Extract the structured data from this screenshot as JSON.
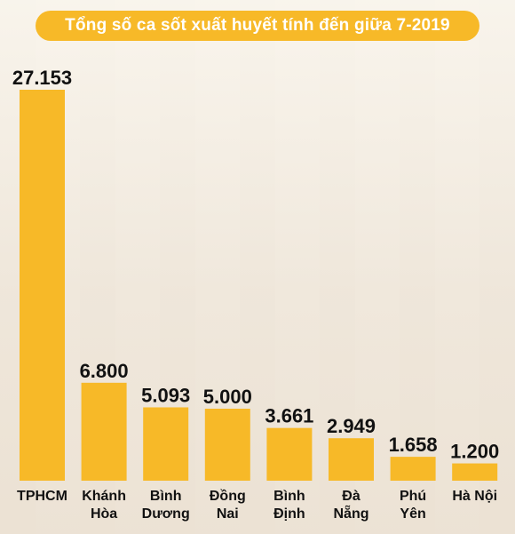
{
  "chart_data": {
    "type": "bar",
    "title": "Tổng số ca sốt xuất huyết tính đến giữa 7-2019",
    "categories": [
      [
        "TPHCM"
      ],
      [
        "Khánh",
        "Hòa"
      ],
      [
        "Bình",
        "Dương"
      ],
      [
        "Đồng",
        "Nai"
      ],
      [
        "Bình",
        "Định"
      ],
      [
        "Đà",
        "Nẵng"
      ],
      [
        "Phú",
        "Yên"
      ],
      [
        "Hà Nội"
      ]
    ],
    "values": [
      27153,
      6800,
      5093,
      5000,
      3661,
      2949,
      1658,
      1200
    ],
    "value_labels": [
      "27.153",
      "6.800",
      "5.093",
      "5.000",
      "3.661",
      "2.949",
      "1.658",
      "1.200"
    ],
    "ylim": [
      0,
      27153
    ],
    "grid": false,
    "bar_color": "#f7b928"
  }
}
